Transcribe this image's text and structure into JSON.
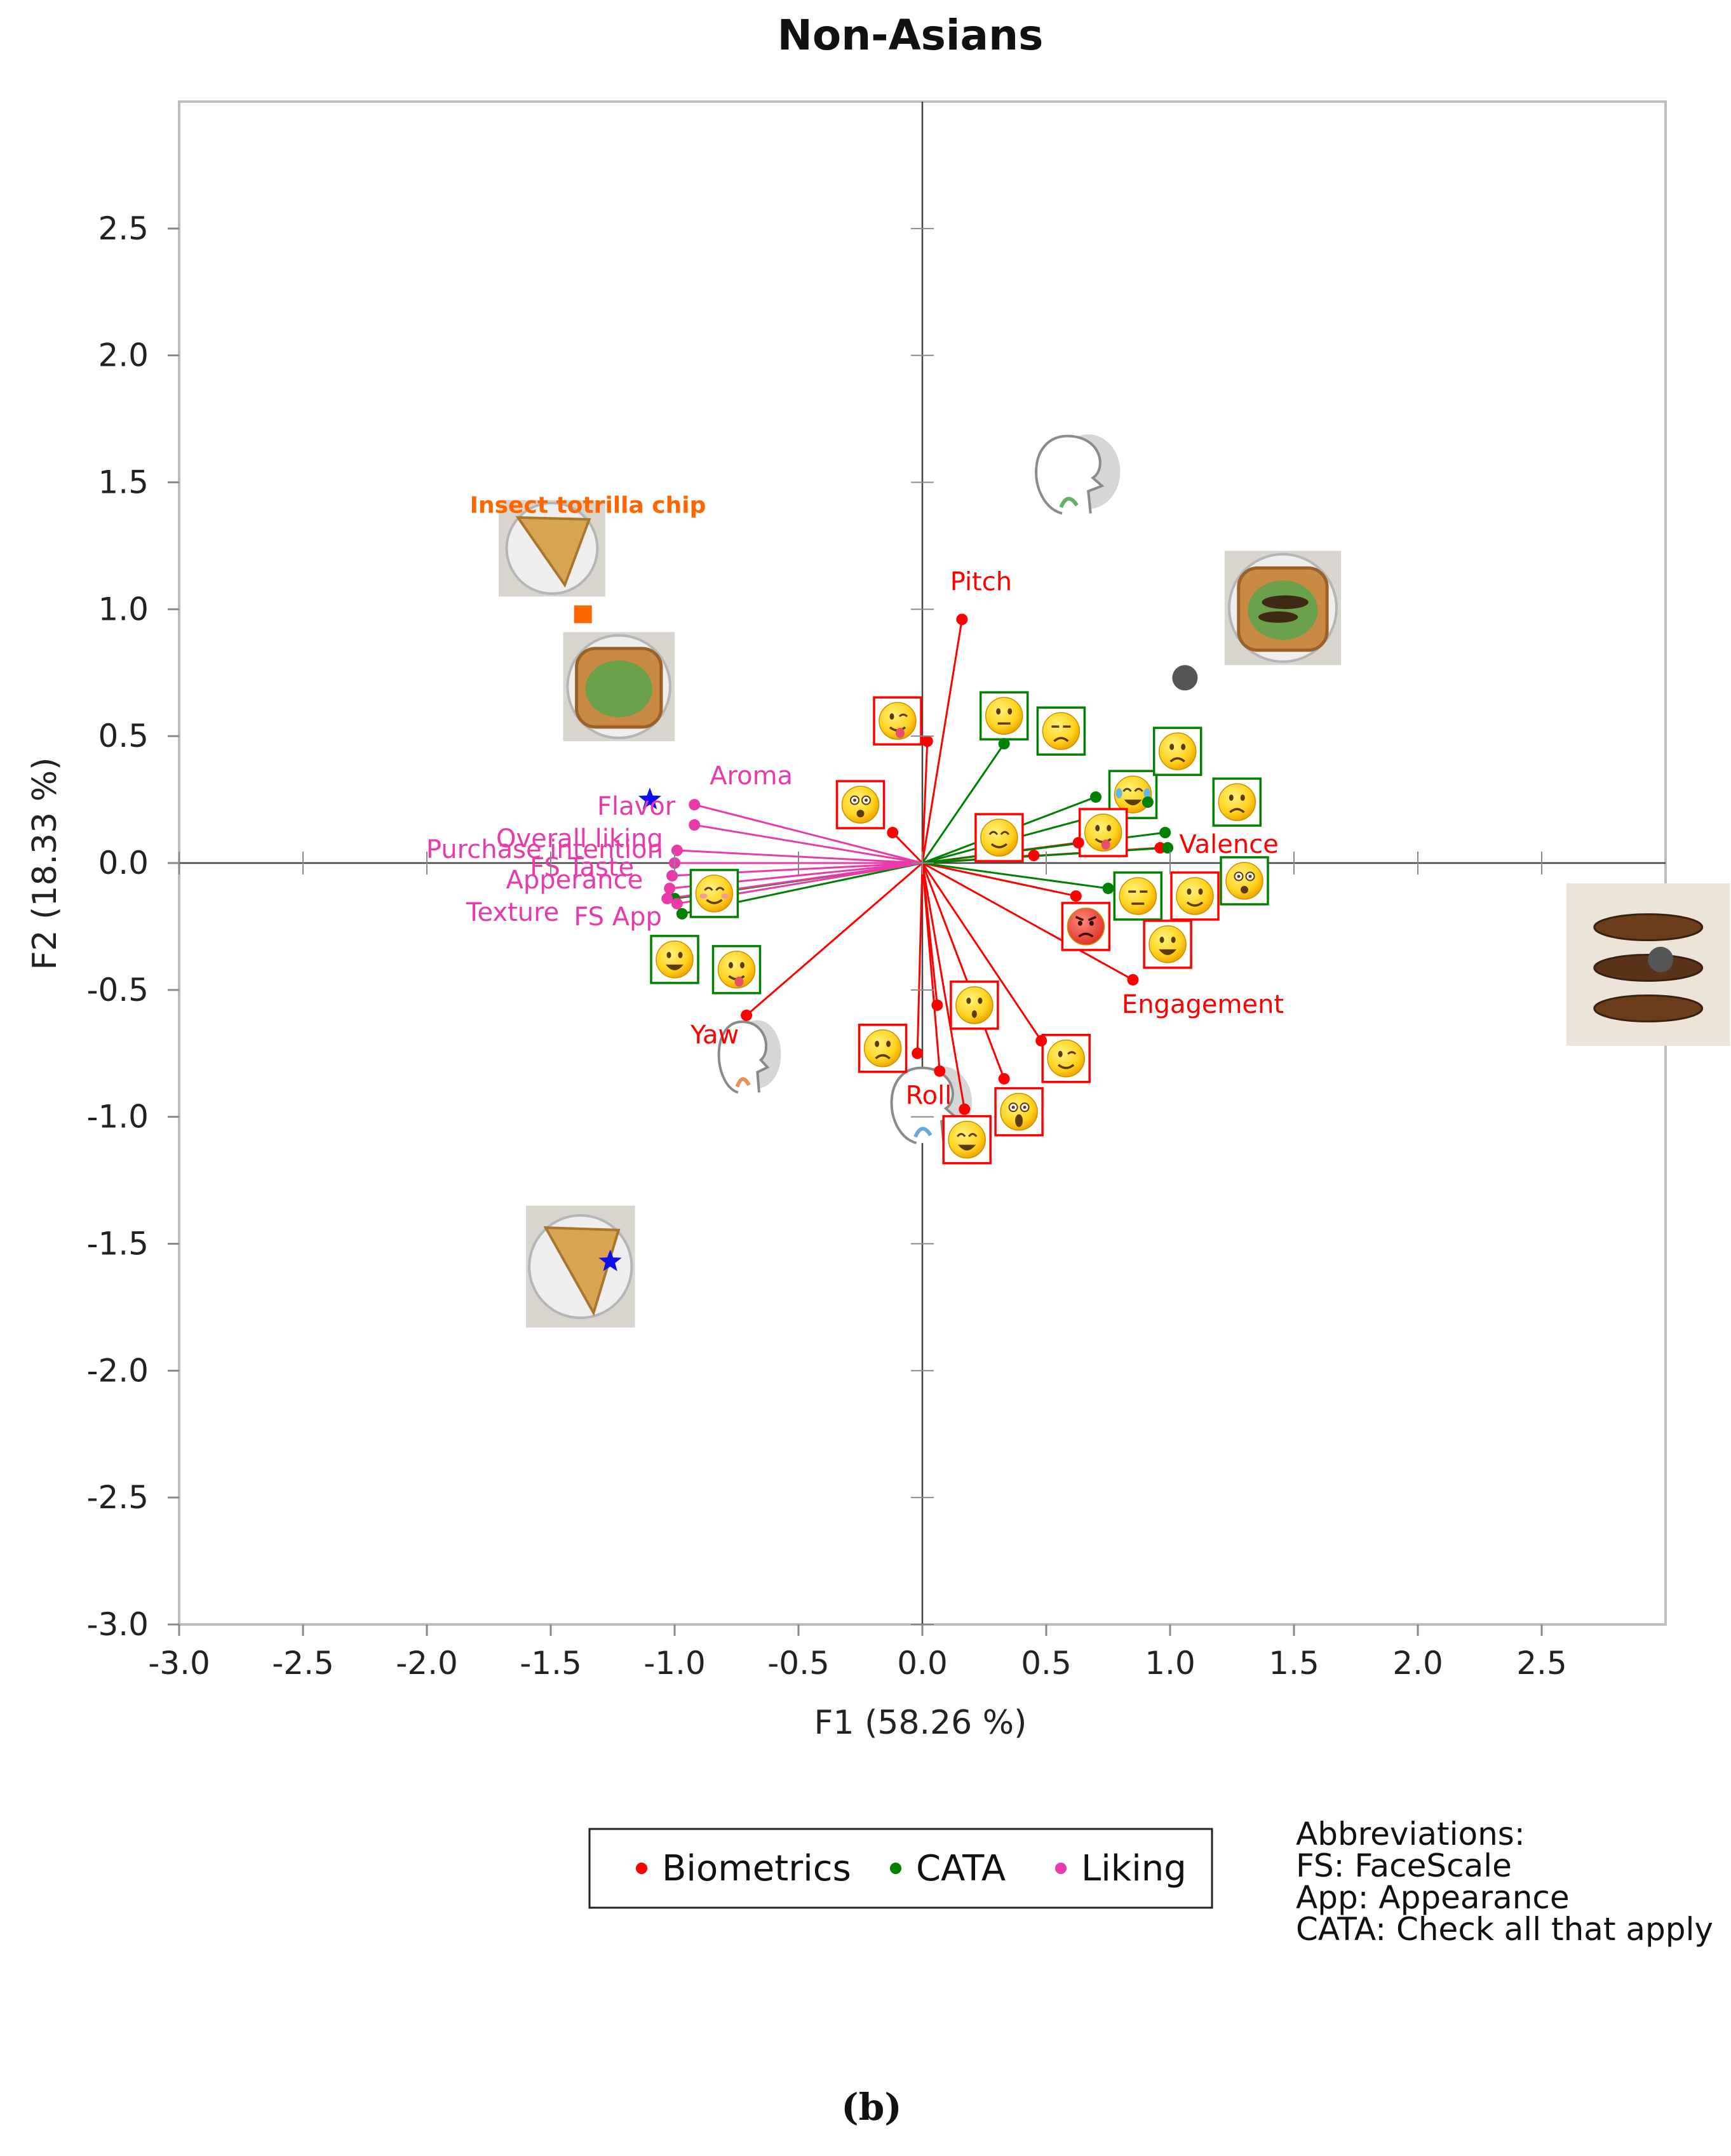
{
  "chart_data": {
    "type": "scatter",
    "subtype": "biplot",
    "title": "Non-Asians",
    "xlabel": "F1 (58.26 %)",
    "ylabel": "F2 (18.33 %)",
    "xlim": [
      -3.0,
      3.0
    ],
    "ylim": [
      -3.0,
      3.0
    ],
    "x_ticks": [
      "-3.0",
      "-2.5",
      "-2.0",
      "-1.5",
      "-1.0",
      "-0.5",
      "0.0",
      "0.5",
      "1.0",
      "1.5",
      "2.0",
      "2.5"
    ],
    "y_ticks": [
      "2.5",
      "2.0",
      "1.5",
      "1.0",
      "0.5",
      "0.0",
      "-0.5",
      "-1.0",
      "-1.5",
      "-2.0",
      "-2.5",
      "-3.0"
    ],
    "grid": false,
    "legend_position": "bottom-center",
    "series": [
      {
        "name": "Biometrics",
        "color": "#ff0000",
        "points": [
          {
            "x": 0.16,
            "y": 0.96,
            "label": "Pitch"
          },
          {
            "x": 0.02,
            "y": 0.48,
            "label": ""
          },
          {
            "x": -0.12,
            "y": 0.12,
            "label": ""
          },
          {
            "x": 0.63,
            "y": 0.08,
            "label": ""
          },
          {
            "x": 0.96,
            "y": 0.06,
            "label": "Valence"
          },
          {
            "x": 0.45,
            "y": 0.03,
            "label": ""
          },
          {
            "x": 0.62,
            "y": -0.13,
            "label": ""
          },
          {
            "x": 0.85,
            "y": -0.46,
            "label": "Engagement"
          },
          {
            "x": 0.48,
            "y": -0.7,
            "label": ""
          },
          {
            "x": 0.06,
            "y": -0.56,
            "label": ""
          },
          {
            "x": -0.02,
            "y": -0.75,
            "label": ""
          },
          {
            "x": 0.07,
            "y": -0.82,
            "label": ""
          },
          {
            "x": 0.33,
            "y": -0.85,
            "label": ""
          },
          {
            "x": 0.17,
            "y": -0.97,
            "label": "Roll"
          },
          {
            "x": -0.71,
            "y": -0.6,
            "label": "Yaw"
          }
        ]
      },
      {
        "name": "CATA",
        "color": "#008000",
        "points": [
          {
            "x": 0.33,
            "y": 0.47,
            "label": ""
          },
          {
            "x": 0.7,
            "y": 0.26,
            "label": ""
          },
          {
            "x": 0.91,
            "y": 0.24,
            "label": ""
          },
          {
            "x": 0.98,
            "y": 0.12,
            "label": ""
          },
          {
            "x": 0.99,
            "y": 0.06,
            "label": ""
          },
          {
            "x": 0.75,
            "y": -0.1,
            "label": ""
          },
          {
            "x": -0.97,
            "y": -0.2,
            "label": ""
          },
          {
            "x": -1.0,
            "y": -0.14,
            "label": ""
          }
        ]
      },
      {
        "name": "Liking",
        "color": "#ea3aa9",
        "points": [
          {
            "x": -0.92,
            "y": 0.23,
            "label": "Aroma"
          },
          {
            "x": -0.92,
            "y": 0.15,
            "label": "Flavor"
          },
          {
            "x": -0.99,
            "y": 0.05,
            "label": "Overall liking"
          },
          {
            "x": -1.0,
            "y": 0.0,
            "label": "Purchase intention"
          },
          {
            "x": -1.01,
            "y": -0.05,
            "label": "FS Taste"
          },
          {
            "x": -1.02,
            "y": -0.1,
            "label": "Apperance"
          },
          {
            "x": -1.03,
            "y": -0.14,
            "label": "Texture"
          },
          {
            "x": -0.99,
            "y": -0.16,
            "label": "FS App"
          }
        ]
      }
    ],
    "observations": [
      {
        "x": -1.37,
        "y": 0.98,
        "marker": "square",
        "color": "#ff6600",
        "label": "Insect totrilla chip"
      },
      {
        "x": -1.1,
        "y": 0.25,
        "marker": "star",
        "color": "#1010ee",
        "label": ""
      },
      {
        "x": -1.26,
        "y": -1.57,
        "marker": "star",
        "color": "#1010ee",
        "label": ""
      },
      {
        "x": 1.06,
        "y": 0.73,
        "marker": "circle",
        "color": "#555555",
        "label": ""
      },
      {
        "x": 2.98,
        "y": -0.38,
        "marker": "circle",
        "color": "#555555",
        "label": ""
      }
    ],
    "emoji_markers": [
      {
        "x": -0.1,
        "y": 0.56,
        "frame": "#ff0000",
        "icon": "wink-tongue-emoji"
      },
      {
        "x": -0.25,
        "y": 0.23,
        "frame": "#ff0000",
        "icon": "flushed-emoji"
      },
      {
        "x": 0.33,
        "y": 0.58,
        "frame": "#008000",
        "icon": "neutral-emoji"
      },
      {
        "x": 0.56,
        "y": 0.52,
        "frame": "#008000",
        "icon": "unamused-emoji"
      },
      {
        "x": 0.85,
        "y": 0.27,
        "frame": "#008000",
        "icon": "joy-emoji"
      },
      {
        "x": 1.03,
        "y": 0.44,
        "frame": "#008000",
        "icon": "disappointed-emoji"
      },
      {
        "x": 1.27,
        "y": 0.24,
        "frame": "#008000",
        "icon": "confused-emoji"
      },
      {
        "x": 0.31,
        "y": 0.1,
        "frame": "#ff0000",
        "icon": "smirk-emoji"
      },
      {
        "x": 0.73,
        "y": 0.12,
        "frame": "#ff0000",
        "icon": "tongue-emoji"
      },
      {
        "x": 1.3,
        "y": -0.07,
        "frame": "#008000",
        "icon": "surprised-emoji"
      },
      {
        "x": 0.87,
        "y": -0.13,
        "frame": "#008000",
        "icon": "expressionless-emoji"
      },
      {
        "x": 1.1,
        "y": -0.13,
        "frame": "#ff0000",
        "icon": "slight-smile-emoji"
      },
      {
        "x": 0.66,
        "y": -0.25,
        "frame": "#ff0000",
        "icon": "angry-emoji"
      },
      {
        "x": 0.99,
        "y": -0.32,
        "frame": "#ff0000",
        "icon": "grin-emoji"
      },
      {
        "x": -0.84,
        "y": -0.12,
        "frame": "#008000",
        "icon": "blush-emoji"
      },
      {
        "x": -1.0,
        "y": -0.38,
        "frame": "#008000",
        "icon": "smiley-emoji"
      },
      {
        "x": -0.75,
        "y": -0.42,
        "frame": "#008000",
        "icon": "yum-emoji"
      },
      {
        "x": 0.21,
        "y": -0.56,
        "frame": "#ff0000",
        "icon": "kissing-emoji"
      },
      {
        "x": -0.16,
        "y": -0.73,
        "frame": "#ff0000",
        "icon": "sad-emoji"
      },
      {
        "x": 0.58,
        "y": -0.77,
        "frame": "#ff0000",
        "icon": "wink-emoji"
      },
      {
        "x": 0.39,
        "y": -0.98,
        "frame": "#ff0000",
        "icon": "scream-emoji"
      },
      {
        "x": 0.18,
        "y": -1.09,
        "frame": "#ff0000",
        "icon": "laughing-emoji"
      }
    ],
    "images": [
      {
        "x": -1.71,
        "y": 1.05,
        "w": 0.43,
        "h": 0.38,
        "kind": "tortilla-chip-with-cup-photo"
      },
      {
        "x": -1.45,
        "y": 0.48,
        "w": 0.45,
        "h": 0.43,
        "kind": "toast-with-avocado-photo"
      },
      {
        "x": 1.22,
        "y": 0.78,
        "w": 0.47,
        "h": 0.45,
        "kind": "toast-with-avocado-and-insects-photo"
      },
      {
        "x": 2.6,
        "y": -0.72,
        "w": 0.66,
        "h": 0.64,
        "kind": "roasted-insects-photo"
      },
      {
        "x": -1.6,
        "y": -1.83,
        "w": 0.44,
        "h": 0.48,
        "kind": "tortilla-chip-photo"
      },
      {
        "x": 0.38,
        "y": 1.36,
        "w": 0.46,
        "h": 0.35,
        "kind": "head-pitch-icon"
      },
      {
        "x": -0.88,
        "y": -0.92,
        "w": 0.34,
        "h": 0.32,
        "kind": "head-yaw-icon"
      },
      {
        "x": -0.2,
        "y": -1.12,
        "w": 0.44,
        "h": 0.34,
        "kind": "head-roll-icon"
      }
    ]
  },
  "legend": {
    "items": [
      {
        "label": "Biometrics",
        "color": "#ff0000"
      },
      {
        "label": "CATA",
        "color": "#008000"
      },
      {
        "label": "Liking",
        "color": "#ea3aa9"
      }
    ]
  },
  "abbreviations": {
    "heading": "Abbreviations:",
    "lines": [
      "FS: FaceScale",
      "App: Appearance",
      "CATA: Check all that apply"
    ]
  },
  "caption": "(b)"
}
